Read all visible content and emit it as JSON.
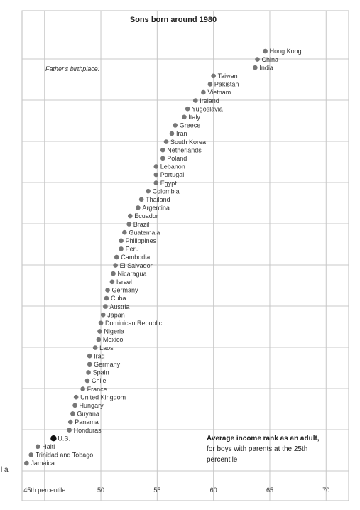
{
  "chart_data": {
    "type": "scatter",
    "title": "Sons born around 1980",
    "note": "Father's birthplace:",
    "annotation": {
      "line1": "Average income rank as an adult,",
      "line2": "for boys with parents at the 25th",
      "line3": "percentile"
    },
    "x_tick_labels": [
      "45th percentile",
      "50",
      "55",
      "60",
      "65",
      "70"
    ],
    "x_ticks": [
      45,
      50,
      55,
      60,
      65,
      70
    ],
    "xlim": [
      43,
      72
    ],
    "grid": true,
    "edge_text": "l a",
    "highlight_color": "#111111",
    "point_color": "#777777",
    "points": [
      {
        "label": "Hong Kong",
        "x": 64.6
      },
      {
        "label": "China",
        "x": 63.9
      },
      {
        "label": "India",
        "x": 63.7
      },
      {
        "label": "Taiwan",
        "x": 60.0
      },
      {
        "label": "Pakistan",
        "x": 59.7
      },
      {
        "label": "Vietnam",
        "x": 59.1
      },
      {
        "label": "Ireland",
        "x": 58.4
      },
      {
        "label": "Yugoslavia",
        "x": 57.7
      },
      {
        "label": "Italy",
        "x": 57.4
      },
      {
        "label": "Greece",
        "x": 56.6
      },
      {
        "label": "Iran",
        "x": 56.3
      },
      {
        "label": "South Korea",
        "x": 55.8
      },
      {
        "label": "Netherlands",
        "x": 55.5
      },
      {
        "label": "Poland",
        "x": 55.5
      },
      {
        "label": "Lebanon",
        "x": 54.9
      },
      {
        "label": "Portugal",
        "x": 54.9
      },
      {
        "label": "Egypt",
        "x": 54.9
      },
      {
        "label": "Colombia",
        "x": 54.2
      },
      {
        "label": "Thailand",
        "x": 53.6
      },
      {
        "label": "Argentina",
        "x": 53.3
      },
      {
        "label": "Ecuador",
        "x": 52.6
      },
      {
        "label": "Brazil",
        "x": 52.5
      },
      {
        "label": "Guatemala",
        "x": 52.1
      },
      {
        "label": "Philippines",
        "x": 51.8
      },
      {
        "label": "Peru",
        "x": 51.8
      },
      {
        "label": "Cambodia",
        "x": 51.4
      },
      {
        "label": "El Salvador",
        "x": 51.3
      },
      {
        "label": "Nicaragua",
        "x": 51.1
      },
      {
        "label": "Israel",
        "x": 51.0
      },
      {
        "label": "Germany",
        "x": 50.6
      },
      {
        "label": "Cuba",
        "x": 50.5
      },
      {
        "label": "Austria",
        "x": 50.4
      },
      {
        "label": "Japan",
        "x": 50.2
      },
      {
        "label": "Dominican Republic",
        "x": 50.0
      },
      {
        "label": "Nigeria",
        "x": 49.9
      },
      {
        "label": "Mexico",
        "x": 49.8
      },
      {
        "label": "Laos",
        "x": 49.5
      },
      {
        "label": "Iraq",
        "x": 49.0
      },
      {
        "label": "Germany",
        "x": 49.0
      },
      {
        "label": "Spain",
        "x": 48.9
      },
      {
        "label": "Chile",
        "x": 48.8
      },
      {
        "label": "France",
        "x": 48.4
      },
      {
        "label": "United Kingdom",
        "x": 47.8
      },
      {
        "label": "Hungary",
        "x": 47.7
      },
      {
        "label": "Guyana",
        "x": 47.5
      },
      {
        "label": "Panama",
        "x": 47.3
      },
      {
        "label": "Honduras",
        "x": 47.2
      },
      {
        "label": "U.S.",
        "x": 45.8,
        "highlight": true
      },
      {
        "label": "Haiti",
        "x": 44.4
      },
      {
        "label": "Trinidad and Tobago",
        "x": 43.8
      },
      {
        "label": "Jamaica",
        "x": 43.4
      }
    ]
  }
}
